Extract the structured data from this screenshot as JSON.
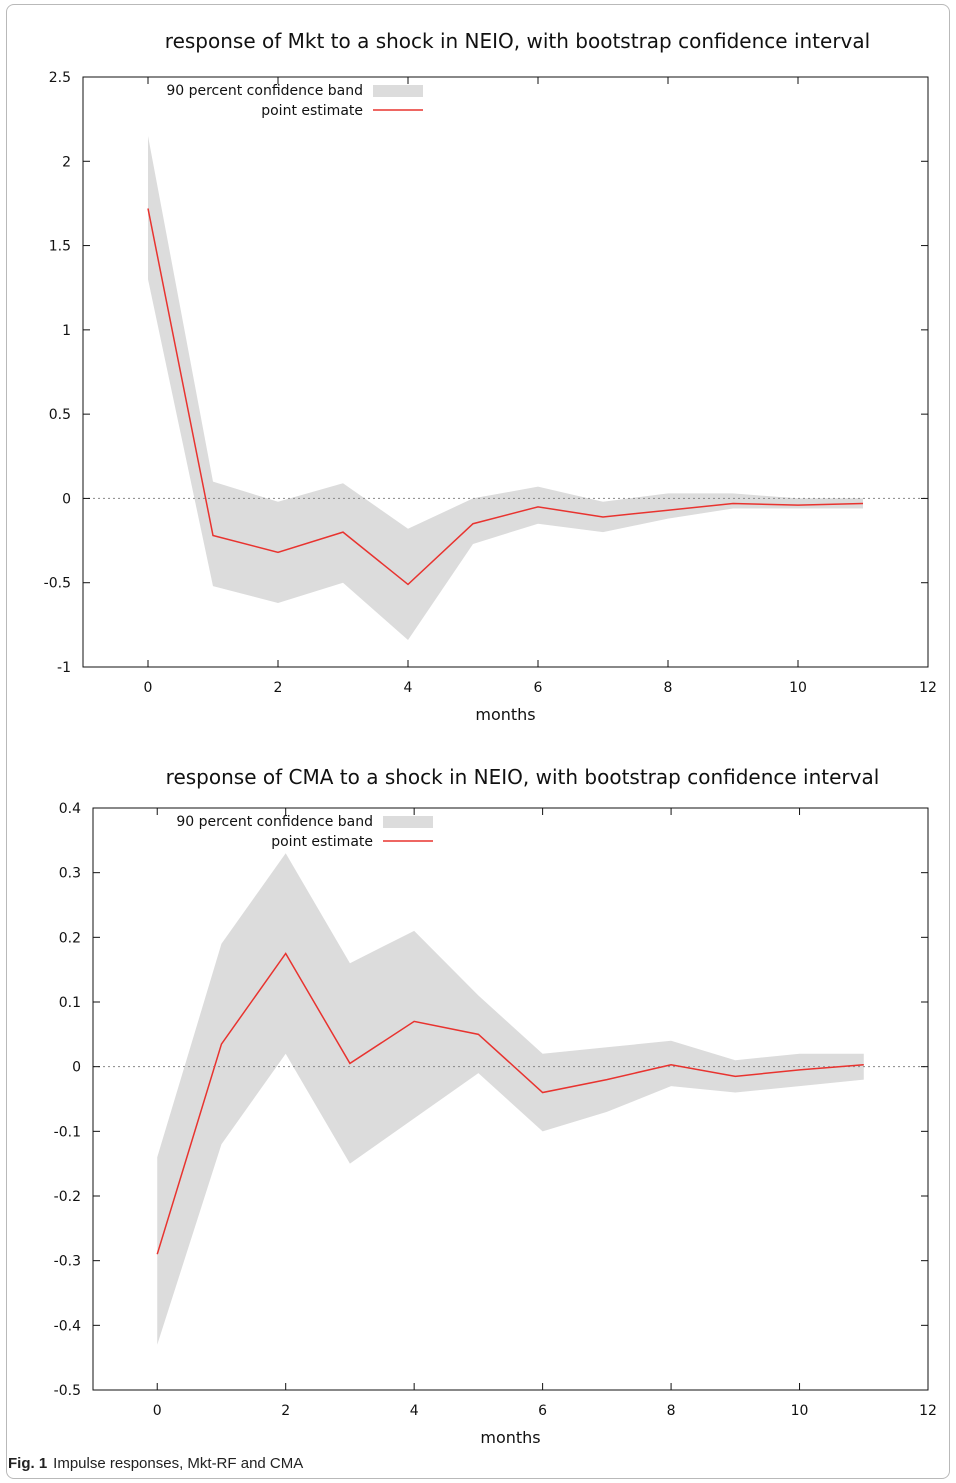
{
  "caption": {
    "label": "Fig. 1",
    "text": "Impulse responses, Mkt-RF and CMA"
  },
  "colors": {
    "band": "#dcdcdc",
    "line": "#e8332f",
    "axis": "#111111",
    "zero": "#888888"
  },
  "chart_data": [
    {
      "type": "area",
      "title": "response of Mkt to a shock in NEIO, with bootstrap confidence interval",
      "xlabel": "months",
      "ylabel": "",
      "xlim": [
        -1,
        12
      ],
      "ylim": [
        -1,
        2.5
      ],
      "xticks": [
        0,
        2,
        4,
        6,
        8,
        10,
        12
      ],
      "yticks": [
        -1,
        -0.5,
        0,
        0.5,
        1,
        1.5,
        2,
        2.5
      ],
      "ytick_labels": [
        "-1",
        "-0.5",
        "0",
        "0.5",
        "1",
        "1.5",
        "2",
        "2.5"
      ],
      "x": [
        0,
        1,
        2,
        3,
        4,
        5,
        6,
        7,
        8,
        9,
        10,
        11
      ],
      "legend_position": "top-left",
      "series": [
        {
          "name": "90 percent confidence band",
          "kind": "band",
          "lower": [
            1.3,
            -0.52,
            -0.62,
            -0.5,
            -0.84,
            -0.27,
            -0.15,
            -0.2,
            -0.12,
            -0.06,
            -0.06,
            -0.06
          ],
          "upper": [
            2.15,
            0.1,
            -0.02,
            0.09,
            -0.18,
            0.0,
            0.07,
            -0.02,
            0.03,
            0.03,
            0.0,
            0.0
          ]
        },
        {
          "name": "point estimate",
          "kind": "line",
          "values": [
            1.72,
            -0.22,
            -0.32,
            -0.2,
            -0.51,
            -0.15,
            -0.05,
            -0.11,
            -0.07,
            -0.03,
            -0.04,
            -0.03
          ]
        }
      ]
    },
    {
      "type": "area",
      "title": "response of CMA to a shock in NEIO, with bootstrap confidence interval",
      "xlabel": "months",
      "ylabel": "",
      "xlim": [
        -1,
        12
      ],
      "ylim": [
        -0.5,
        0.4
      ],
      "xticks": [
        0,
        2,
        4,
        6,
        8,
        10,
        12
      ],
      "yticks": [
        -0.5,
        -0.4,
        -0.3,
        -0.2,
        -0.1,
        0,
        0.1,
        0.2,
        0.3,
        0.4
      ],
      "ytick_labels": [
        "-0.5",
        "-0.4",
        "-0.3",
        "-0.2",
        "-0.1",
        "0",
        "0.1",
        "0.2",
        "0.3",
        "0.4"
      ],
      "x": [
        0,
        1,
        2,
        3,
        4,
        5,
        6,
        7,
        8,
        9,
        10,
        11
      ],
      "legend_position": "top-left",
      "series": [
        {
          "name": "90 percent confidence band",
          "kind": "band",
          "lower": [
            -0.43,
            -0.12,
            0.02,
            -0.15,
            -0.08,
            -0.01,
            -0.1,
            -0.07,
            -0.03,
            -0.04,
            -0.03,
            -0.02
          ],
          "upper": [
            -0.14,
            0.19,
            0.33,
            0.16,
            0.21,
            0.11,
            0.02,
            0.03,
            0.04,
            0.01,
            0.02,
            0.02
          ]
        },
        {
          "name": "point estimate",
          "kind": "line",
          "values": [
            -0.29,
            0.035,
            0.175,
            0.005,
            0.07,
            0.05,
            -0.04,
            -0.02,
            0.003,
            -0.015,
            -0.005,
            0.003
          ]
        }
      ]
    }
  ]
}
